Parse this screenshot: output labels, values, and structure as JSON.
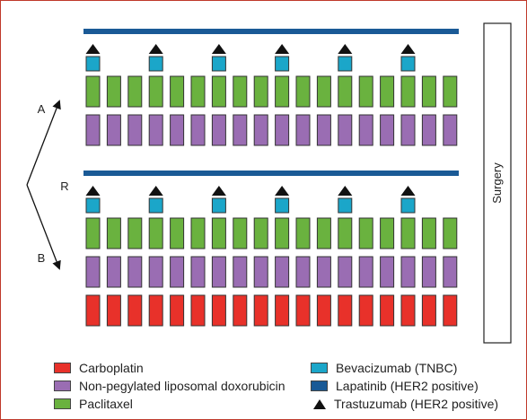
{
  "labels": {
    "arm_a": "A",
    "arm_b": "B",
    "randomisation": "R",
    "surgery": "Surgery"
  },
  "colors": {
    "carboplatin": "#e8312a",
    "doxorubicin": "#9a6db3",
    "paclitaxel": "#6ab23f",
    "bevacizumab": "#1ba6c9",
    "lapatinib": "#1a5a96",
    "trastuzumab": "#111111"
  },
  "arms": {
    "A": {
      "weekly_cycles": 18,
      "drug_rows": [
        "paclitaxel",
        "doxorubicin"
      ],
      "antibody_every_n_weeks": 3
    },
    "B": {
      "weekly_cycles": 18,
      "drug_rows": [
        "paclitaxel",
        "doxorubicin",
        "carboplatin"
      ],
      "antibody_every_n_weeks": 3
    }
  },
  "legend": {
    "carboplatin": "Carboplatin",
    "doxorubicin": "Non-pegylated liposomal doxorubicin",
    "paclitaxel": "Paclitaxel",
    "bevacizumab": "Bevacizumab (TNBC)",
    "lapatinib": "Lapatinib (HER2 positive)",
    "trastuzumab": "Trastuzumab (HER2 positive)"
  }
}
